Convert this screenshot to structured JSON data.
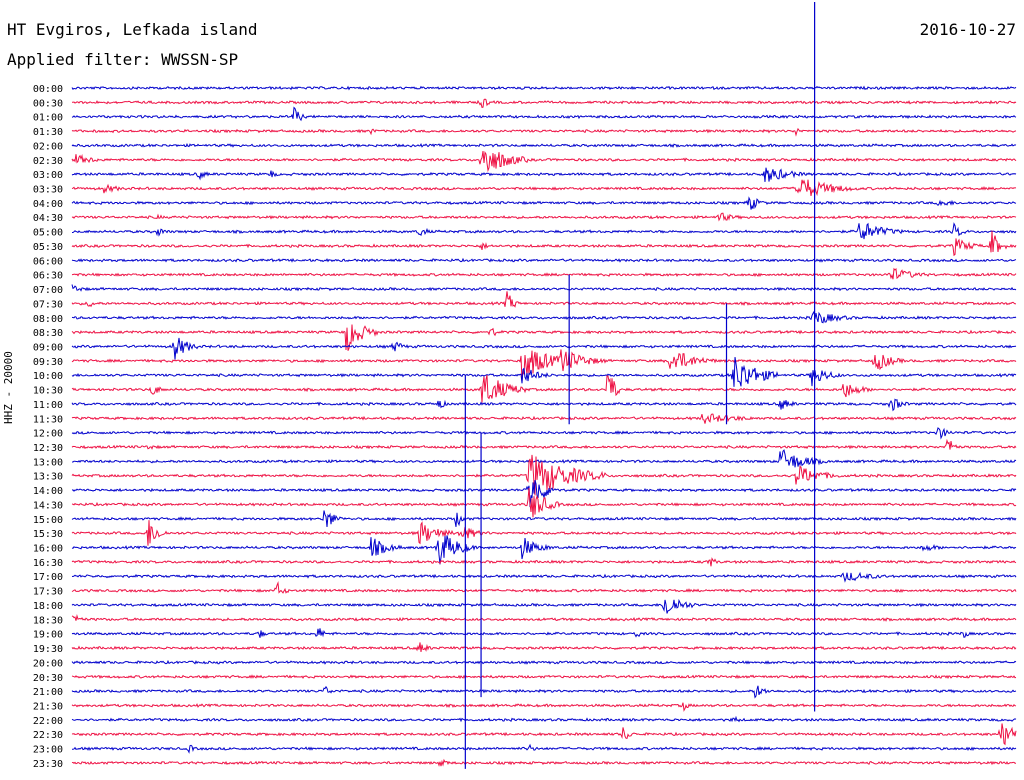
{
  "header": {
    "station": "HT Evgiros, Lefkada island",
    "date": "2016-10-27",
    "filter": "Applied filter: WWSSN-SP"
  },
  "chart_data": {
    "type": "line",
    "title": "HT Evgiros, Lefkada island",
    "subtitle": "Applied filter: WWSSN-SP",
    "ylabel": "HHZ - 20000",
    "xlabel": "",
    "colors": [
      "#0000cc",
      "#ee1144"
    ],
    "rows": [
      "00:00",
      "00:30",
      "01:00",
      "01:30",
      "02:00",
      "02:30",
      "03:00",
      "03:30",
      "04:00",
      "04:30",
      "05:00",
      "05:30",
      "06:00",
      "06:30",
      "07:00",
      "07:30",
      "08:00",
      "08:30",
      "09:00",
      "09:30",
      "10:00",
      "10:30",
      "11:00",
      "11:30",
      "12:00",
      "12:30",
      "13:00",
      "13:30",
      "14:00",
      "14:30",
      "15:00",
      "15:30",
      "16:00",
      "16:30",
      "17:00",
      "17:30",
      "18:00",
      "18:30",
      "19:00",
      "19:30",
      "20:00",
      "20:30",
      "21:00",
      "21:30",
      "22:00",
      "22:30",
      "23:00",
      "23:30"
    ],
    "events": [
      {
        "row": 1,
        "minute": 13.0,
        "amp": 10,
        "dur": 0.3
      },
      {
        "row": 2,
        "minute": 7.0,
        "amp": 14,
        "dur": 0.4
      },
      {
        "row": 3,
        "minute": 23.0,
        "amp": 6,
        "dur": 0.2
      },
      {
        "row": 3,
        "minute": 9.5,
        "amp": 4,
        "dur": 0.3
      },
      {
        "row": 5,
        "minute": 0.1,
        "amp": 6,
        "dur": 1.2
      },
      {
        "row": 5,
        "minute": 13.0,
        "amp": 20,
        "dur": 1.5
      },
      {
        "row": 6,
        "minute": 4.0,
        "amp": 6,
        "dur": 0.5
      },
      {
        "row": 6,
        "minute": 6.3,
        "amp": 6,
        "dur": 0.3
      },
      {
        "row": 6,
        "minute": 22.0,
        "amp": 10,
        "dur": 1.5
      },
      {
        "row": 7,
        "minute": 1.0,
        "amp": 5,
        "dur": 1.0
      },
      {
        "row": 7,
        "minute": 23.0,
        "amp": 14,
        "dur": 2.0
      },
      {
        "row": 8,
        "minute": 21.5,
        "amp": 10,
        "dur": 0.6
      },
      {
        "row": 8,
        "minute": 27.5,
        "amp": 5,
        "dur": 1.0
      },
      {
        "row": 9,
        "minute": 2.7,
        "amp": 4,
        "dur": 0.3
      },
      {
        "row": 9,
        "minute": 20.5,
        "amp": 6,
        "dur": 1.0
      },
      {
        "row": 10,
        "minute": 2.7,
        "amp": 5,
        "dur": 0.6
      },
      {
        "row": 10,
        "minute": 11.0,
        "amp": 7,
        "dur": 0.5
      },
      {
        "row": 10,
        "minute": 25.0,
        "amp": 12,
        "dur": 1.5
      },
      {
        "row": 10,
        "minute": 28.0,
        "amp": 9,
        "dur": 0.5
      },
      {
        "row": 11,
        "minute": 13.0,
        "amp": 6,
        "dur": 0.3
      },
      {
        "row": 11,
        "minute": 28.0,
        "amp": 10,
        "dur": 1.0
      },
      {
        "row": 11,
        "minute": 29.2,
        "amp": 18,
        "dur": 0.5
      },
      {
        "row": 13,
        "minute": 26.0,
        "amp": 8,
        "dur": 1.5
      },
      {
        "row": 14,
        "minute": 0.0,
        "amp": 6,
        "dur": 0.5
      },
      {
        "row": 15,
        "minute": 0.5,
        "amp": 5,
        "dur": 0.5
      },
      {
        "row": 15,
        "minute": 13.8,
        "amp": 14,
        "dur": 0.4
      },
      {
        "row": 16,
        "minute": 23.5,
        "amp": 9,
        "dur": 1.5
      },
      {
        "row": 17,
        "minute": 8.7,
        "amp": 22,
        "dur": 1.0
      },
      {
        "row": 17,
        "minute": 13.3,
        "amp": 8,
        "dur": 0.3
      },
      {
        "row": 18,
        "minute": 3.2,
        "amp": 16,
        "dur": 0.8
      },
      {
        "row": 18,
        "minute": 10.2,
        "amp": 8,
        "dur": 0.5
      },
      {
        "row": 19,
        "minute": 14.3,
        "amp": 22,
        "dur": 1.5
      },
      {
        "row": 19,
        "minute": 15.5,
        "amp": 15,
        "dur": 1.5
      },
      {
        "row": 19,
        "minute": 19.0,
        "amp": 14,
        "dur": 1.5
      },
      {
        "row": 19,
        "minute": 25.5,
        "amp": 12,
        "dur": 1.0
      },
      {
        "row": 20,
        "minute": 14.3,
        "amp": 10,
        "dur": 1.0
      },
      {
        "row": 20,
        "minute": 21.0,
        "amp": 22,
        "dur": 1.5
      },
      {
        "row": 20,
        "minute": 23.5,
        "amp": 12,
        "dur": 1.0
      },
      {
        "row": 21,
        "minute": 2.5,
        "amp": 8,
        "dur": 0.5
      },
      {
        "row": 21,
        "minute": 13.0,
        "amp": 20,
        "dur": 1.5
      },
      {
        "row": 21,
        "minute": 17.0,
        "amp": 30,
        "dur": 0.4
      },
      {
        "row": 21,
        "minute": 24.5,
        "amp": 10,
        "dur": 1.0
      },
      {
        "row": 22,
        "minute": 11.6,
        "amp": 8,
        "dur": 0.4
      },
      {
        "row": 22,
        "minute": 22.5,
        "amp": 8,
        "dur": 0.6
      },
      {
        "row": 22,
        "minute": 26.0,
        "amp": 10,
        "dur": 0.6
      },
      {
        "row": 23,
        "minute": 20.0,
        "amp": 6,
        "dur": 2.5
      },
      {
        "row": 24,
        "minute": 27.5,
        "amp": 8,
        "dur": 0.6
      },
      {
        "row": 25,
        "minute": 2.4,
        "amp": 5,
        "dur": 0.3
      },
      {
        "row": 25,
        "minute": 27.8,
        "amp": 12,
        "dur": 0.4
      },
      {
        "row": 26,
        "minute": 22.5,
        "amp": 14,
        "dur": 1.5
      },
      {
        "row": 27,
        "minute": 14.5,
        "amp": 26,
        "dur": 2.5
      },
      {
        "row": 27,
        "minute": 23.0,
        "amp": 12,
        "dur": 1.5
      },
      {
        "row": 28,
        "minute": 14.5,
        "amp": 24,
        "dur": 1.0
      },
      {
        "row": 29,
        "minute": 14.5,
        "amp": 20,
        "dur": 1.0
      },
      {
        "row": 30,
        "minute": 8.0,
        "amp": 14,
        "dur": 0.6
      },
      {
        "row": 30,
        "minute": 12.2,
        "amp": 10,
        "dur": 0.4
      },
      {
        "row": 31,
        "minute": 2.4,
        "amp": 18,
        "dur": 0.6
      },
      {
        "row": 31,
        "minute": 11.0,
        "amp": 14,
        "dur": 1.2
      },
      {
        "row": 31,
        "minute": 12.3,
        "amp": 10,
        "dur": 1.0
      },
      {
        "row": 32,
        "minute": 9.5,
        "amp": 12,
        "dur": 1.0
      },
      {
        "row": 32,
        "minute": 11.6,
        "amp": 22,
        "dur": 1.2
      },
      {
        "row": 32,
        "minute": 14.3,
        "amp": 12,
        "dur": 1.0
      },
      {
        "row": 32,
        "minute": 27.0,
        "amp": 5,
        "dur": 1.0
      },
      {
        "row": 33,
        "minute": 20.2,
        "amp": 8,
        "dur": 0.4
      },
      {
        "row": 34,
        "minute": 24.5,
        "amp": 6,
        "dur": 2.0
      },
      {
        "row": 35,
        "minute": 6.5,
        "amp": 10,
        "dur": 0.4
      },
      {
        "row": 36,
        "minute": 18.8,
        "amp": 16,
        "dur": 1.0
      },
      {
        "row": 37,
        "minute": 0.0,
        "amp": 6,
        "dur": 0.6
      },
      {
        "row": 38,
        "minute": 5.9,
        "amp": 8,
        "dur": 0.3
      },
      {
        "row": 38,
        "minute": 7.8,
        "amp": 10,
        "dur": 0.3
      },
      {
        "row": 38,
        "minute": 17.9,
        "amp": 6,
        "dur": 0.3
      },
      {
        "row": 38,
        "minute": 28.3,
        "amp": 6,
        "dur": 0.3
      },
      {
        "row": 39,
        "minute": 11.0,
        "amp": 8,
        "dur": 0.5
      },
      {
        "row": 42,
        "minute": 8.0,
        "amp": 7,
        "dur": 0.4
      },
      {
        "row": 42,
        "minute": 21.7,
        "amp": 8,
        "dur": 0.6
      },
      {
        "row": 43,
        "minute": 19.4,
        "amp": 7,
        "dur": 0.3
      },
      {
        "row": 44,
        "minute": 21.0,
        "amp": 6,
        "dur": 0.3
      },
      {
        "row": 45,
        "minute": 17.5,
        "amp": 10,
        "dur": 0.4
      },
      {
        "row": 45,
        "minute": 29.5,
        "amp": 14,
        "dur": 1.2
      },
      {
        "row": 46,
        "minute": 3.7,
        "amp": 6,
        "dur": 0.3
      },
      {
        "row": 46,
        "minute": 14.5,
        "amp": 6,
        "dur": 0.3
      },
      {
        "row": 47,
        "minute": 11.7,
        "amp": 8,
        "dur": 0.3
      }
    ],
    "spikes": [
      {
        "minute": 23.6,
        "top_row": 0,
        "bottom_row": 43
      },
      {
        "minute": 12.5,
        "top_row": 20,
        "bottom_row": 47
      },
      {
        "minute": 13.0,
        "top_row": 24,
        "bottom_row": 42
      },
      {
        "minute": 20.8,
        "top_row": 15,
        "bottom_row": 23
      },
      {
        "minute": 15.8,
        "top_row": 13,
        "bottom_row": 23
      }
    ]
  }
}
